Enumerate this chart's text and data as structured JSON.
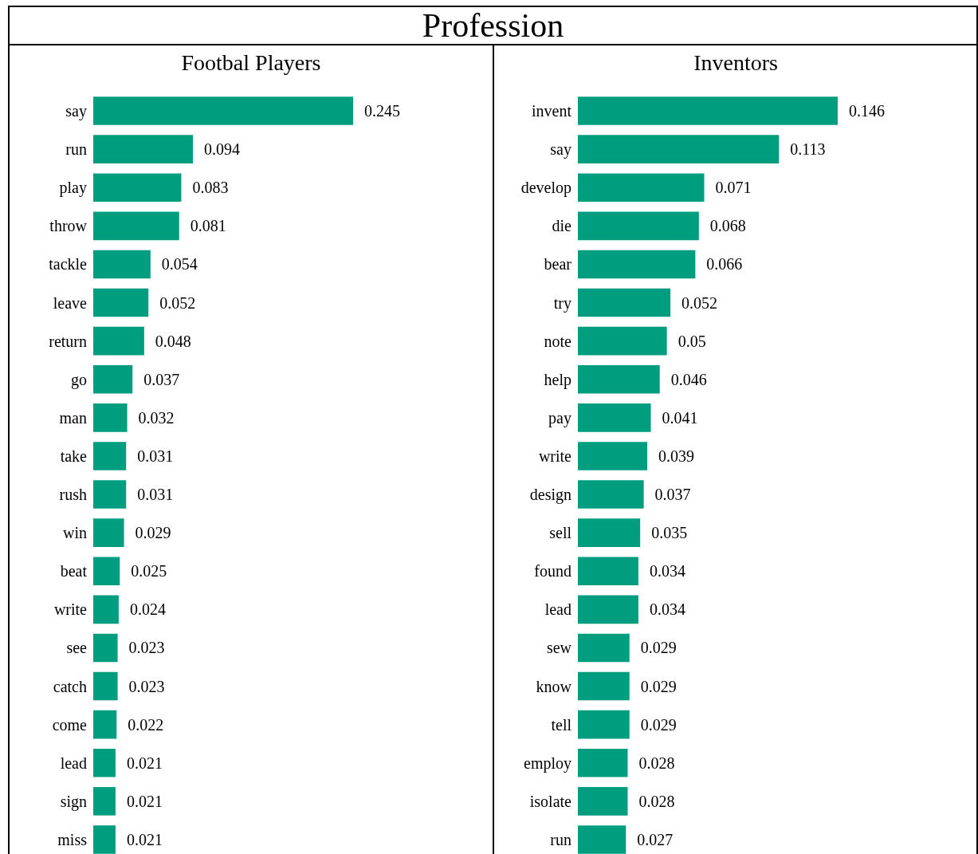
{
  "chart_data": [
    {
      "type": "bar",
      "orientation": "horizontal",
      "title": "Footbal Players",
      "annotations": [
        "Profession"
      ],
      "color": "#009e7f",
      "data_labels": true,
      "tick_labels": "y",
      "categories": [
        "say",
        "run",
        "play",
        "throw",
        "tackle",
        "leave",
        "return",
        "go",
        "man",
        "take",
        "rush",
        "win",
        "beat",
        "write",
        "see",
        "catch",
        "come",
        "lead",
        "sign",
        "miss"
      ],
      "values": [
        0.245,
        0.094,
        0.083,
        0.081,
        0.054,
        0.052,
        0.048,
        0.037,
        0.032,
        0.031,
        0.031,
        0.029,
        0.025,
        0.024,
        0.023,
        0.023,
        0.022,
        0.021,
        0.021,
        0.021
      ]
    },
    {
      "type": "bar",
      "orientation": "horizontal",
      "title": "Inventors",
      "color": "#009e7f",
      "data_labels": true,
      "tick_labels": "y",
      "categories": [
        "invent",
        "say",
        "develop",
        "die",
        "bear",
        "try",
        "note",
        "help",
        "pay",
        "write",
        "design",
        "sell",
        "found",
        "lead",
        "sew",
        "know",
        "tell",
        "employ",
        "isolate",
        "run"
      ],
      "values": [
        0.146,
        0.113,
        0.071,
        0.068,
        0.066,
        0.052,
        0.05,
        0.046,
        0.041,
        0.039,
        0.037,
        0.035,
        0.034,
        0.034,
        0.029,
        0.029,
        0.029,
        0.028,
        0.028,
        0.027
      ]
    }
  ]
}
